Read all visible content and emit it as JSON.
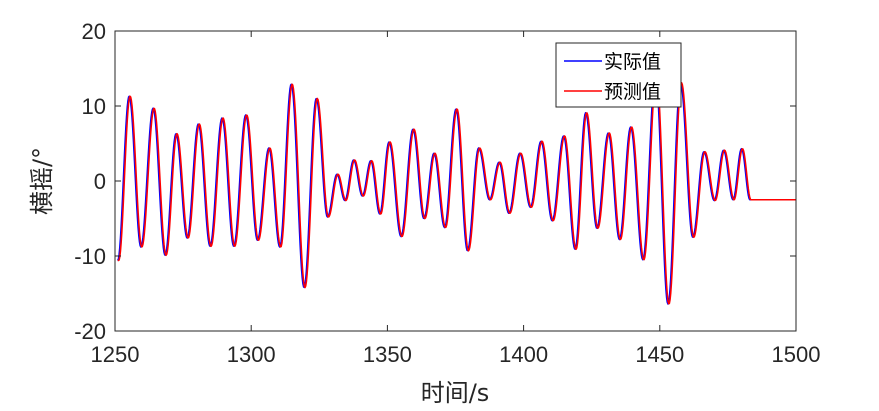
{
  "chart_data": {
    "type": "line",
    "title": "",
    "xlabel": "时间/s",
    "ylabel": "横摇/°",
    "xlim": [
      1250,
      1500
    ],
    "ylim": [
      -20,
      20
    ],
    "xticks": [
      1250,
      1300,
      1350,
      1400,
      1450,
      1500
    ],
    "yticks": [
      -20,
      -10,
      0,
      10,
      20
    ],
    "xtick_labels": [
      "1250",
      "1300",
      "1350",
      "1400",
      "1450",
      "1500"
    ],
    "ytick_labels": [
      "-20",
      "-10",
      "0",
      "10",
      "20"
    ],
    "grid": false,
    "legend_position": "top-right",
    "extrema": [
      [
        1251,
        -10.6
      ],
      [
        1255.2,
        11.3
      ],
      [
        1259.5,
        -8.8
      ],
      [
        1264,
        9.7
      ],
      [
        1268.4,
        -9.9
      ],
      [
        1272.4,
        6.3
      ],
      [
        1276.5,
        -7.6
      ],
      [
        1280.6,
        7.6
      ],
      [
        1284.9,
        -8.7
      ],
      [
        1289.3,
        8.4
      ],
      [
        1293.6,
        -8.7
      ],
      [
        1298,
        8.8
      ],
      [
        1302.3,
        -7.9
      ],
      [
        1306.5,
        4.4
      ],
      [
        1310.5,
        -8.8
      ],
      [
        1314.7,
        12.9
      ],
      [
        1319.4,
        -14.2
      ],
      [
        1323.9,
        11.0
      ],
      [
        1328,
        -4.8
      ],
      [
        1331.5,
        0.9
      ],
      [
        1334.4,
        -2.6
      ],
      [
        1337.6,
        2.8
      ],
      [
        1340.8,
        -2.0
      ],
      [
        1343.9,
        2.7
      ],
      [
        1347.2,
        -4.4
      ],
      [
        1350.6,
        5.2
      ],
      [
        1355,
        -7.4
      ],
      [
        1359.4,
        6.9
      ],
      [
        1363.4,
        -5.0
      ],
      [
        1367.1,
        3.7
      ],
      [
        1371,
        -6.2
      ],
      [
        1375.2,
        9.6
      ],
      [
        1379.4,
        -9.3
      ],
      [
        1383.5,
        4.4
      ],
      [
        1387.5,
        -2.5
      ],
      [
        1391,
        2.5
      ],
      [
        1394.6,
        -4.3
      ],
      [
        1398.6,
        3.7
      ],
      [
        1402.5,
        -3.5
      ],
      [
        1406.4,
        5.3
      ],
      [
        1410.5,
        -5.3
      ],
      [
        1414.7,
        6.0
      ],
      [
        1418.9,
        -9.1
      ],
      [
        1422.8,
        9.1
      ],
      [
        1426.9,
        -6.3
      ],
      [
        1431.1,
        6.4
      ],
      [
        1435.2,
        -7.8
      ],
      [
        1439.3,
        7.2
      ],
      [
        1443.8,
        -10.5
      ],
      [
        1448.4,
        14.2
      ],
      [
        1453,
        -16.4
      ],
      [
        1457.6,
        13.1
      ],
      [
        1462.1,
        -7.5
      ],
      [
        1466.2,
        3.9
      ],
      [
        1470,
        -2.6
      ],
      [
        1473.4,
        4.1
      ],
      [
        1476.9,
        -2.5
      ],
      [
        1480,
        4.3
      ]
    ],
    "series": [
      {
        "name": "实际值",
        "color": "#0000ff",
        "shift": 0
      },
      {
        "name": "预测值",
        "color": "#ff0000",
        "shift": 0.35
      }
    ]
  }
}
